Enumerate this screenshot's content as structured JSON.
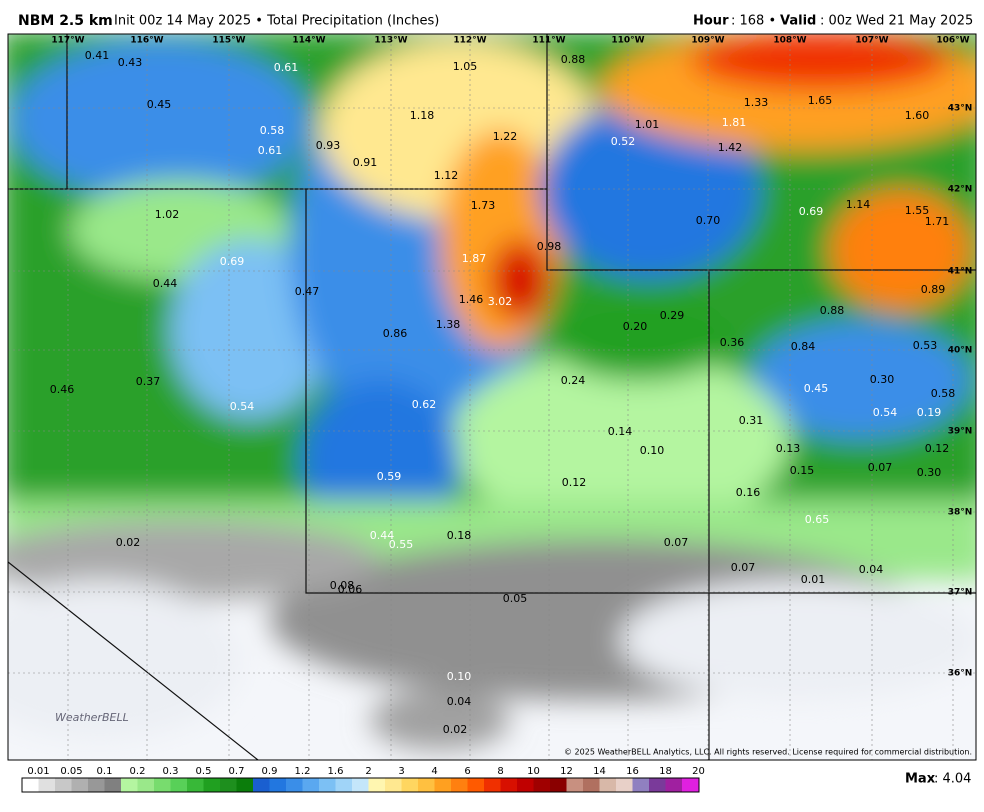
{
  "header": {
    "title": "NBM 2.5 km",
    "subtitle": "Init 00z 14 May 2025 • Total Precipitation (Inches)",
    "hour_label": "Hour",
    "hour_value": ": 168 •",
    "valid_label": "Valid",
    "valid_value": ": 00z Wed 21 May 2025"
  },
  "map": {
    "lon_labels": [
      "117°W",
      "116°W",
      "115°W",
      "114°W",
      "113°W",
      "112°W",
      "111°W",
      "110°W",
      "109°W",
      "108°W",
      "107°W",
      "106°W"
    ],
    "lat_labels": [
      "43°N",
      "42°N",
      "41°N",
      "40°N",
      "39°N",
      "38°N",
      "37°N",
      "36°N"
    ],
    "values": [
      "0.41",
      "0.43",
      "0.61",
      "1.05",
      "0.88",
      "0.45",
      "1.18",
      "1.33",
      "1.65",
      "1.60",
      "0.58",
      "1.22",
      "1.01",
      "1.81",
      "0.52",
      "1.42",
      "0.93",
      "0.61",
      "0.91",
      "1.12",
      "1.73",
      "1.14",
      "1.55",
      "1.71",
      "1.02",
      "0.69",
      "0.70",
      "0.98",
      "0.69",
      "1.87",
      "0.44",
      "0.47",
      "0.89",
      "1.46",
      "3.02",
      "0.88",
      "0.20",
      "0.29",
      "1.38",
      "0.86",
      "0.36",
      "0.84",
      "0.53",
      "0.37",
      "0.24",
      "0.30",
      "0.46",
      "0.45",
      "0.58",
      "0.54",
      "0.62",
      "0.54",
      "0.19",
      "0.31",
      "0.14",
      "0.10",
      "0.13",
      "0.12",
      "0.15",
      "0.07",
      "0.30",
      "0.59",
      "0.12",
      "0.16",
      "0.65",
      "0.44",
      "0.18",
      "0.55",
      "0.02",
      "0.07",
      "0.07",
      "0.04",
      "0.01",
      "0.08",
      "0.06",
      "0.05",
      "0.10",
      "0.04",
      "0.02"
    ],
    "logo": "WeatherBELL",
    "copyright": "© 2025 WeatherBELL Analytics, LLC. All rights reserved. License required for commercial distribution."
  },
  "legend": {
    "ticks": [
      "0.01",
      "0.05",
      "0.1",
      "0.2",
      "0.3",
      "0.5",
      "0.7",
      "0.9",
      "1.2",
      "1.6",
      "2",
      "3",
      "4",
      "6",
      "8",
      "10",
      "12",
      "14",
      "16",
      "18",
      "20"
    ],
    "colors": [
      "#ffffff",
      "#e0e0e0",
      "#c8c8c8",
      "#b0b0b0",
      "#989898",
      "#808080",
      "#b4f5a0",
      "#9ae88a",
      "#78dc6e",
      "#58d058",
      "#38b838",
      "#20a020",
      "#1e8f1e",
      "#0b7d0b",
      "#1a5fd0",
      "#2277e0",
      "#3a8ee8",
      "#5aa8f0",
      "#7cc0f4",
      "#a0d4f8",
      "#c4e6fa",
      "#fff6b0",
      "#ffe890",
      "#ffd660",
      "#ffc040",
      "#ffa020",
      "#ff8010",
      "#ff5a00",
      "#f03000",
      "#d81000",
      "#c00000",
      "#a00000",
      "#8a0000",
      "#c89080",
      "#b07060",
      "#d8b8a8",
      "#e8d0c8",
      "#9080c0",
      "#7a3a9a",
      "#a020a0",
      "#e020e0"
    ],
    "max_label": "Max",
    "max_value": ": 4.04"
  }
}
